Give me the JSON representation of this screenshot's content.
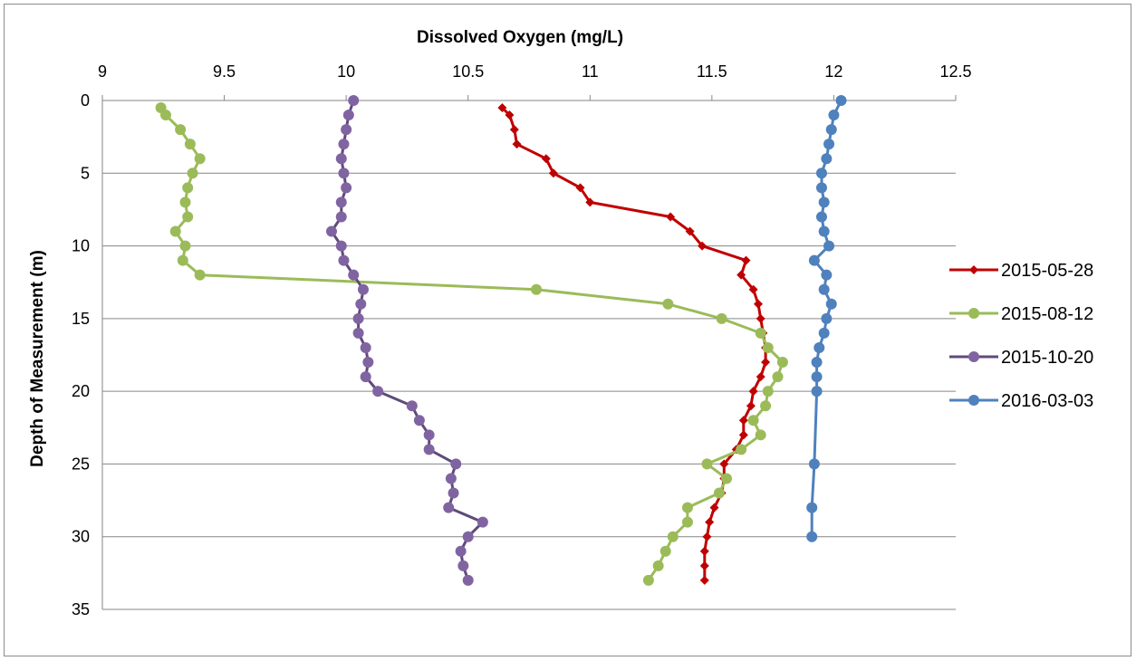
{
  "chart_data": {
    "type": "line",
    "xlabel": "Dissolved Oxygen (mg/L)",
    "ylabel": "Depth of Measurement (m)",
    "x_axis_position": "top",
    "y_axis_reversed": true,
    "xlim": [
      9,
      12.5
    ],
    "ylim": [
      0,
      35
    ],
    "xticks": [
      "9",
      "9.5",
      "10",
      "10.5",
      "11",
      "11.5",
      "12",
      "12.5"
    ],
    "yticks": [
      "0",
      "5",
      "10",
      "15",
      "20",
      "25",
      "30",
      "35"
    ],
    "grid": "horizontal",
    "legend_position": "right",
    "series": [
      {
        "name": "2015-05-28",
        "color": "#c00000",
        "marker": "diamond",
        "points": [
          [
            10.64,
            0.5
          ],
          [
            10.67,
            1
          ],
          [
            10.69,
            2
          ],
          [
            10.7,
            3
          ],
          [
            10.82,
            4
          ],
          [
            10.85,
            5
          ],
          [
            10.96,
            6
          ],
          [
            11,
            7
          ],
          [
            11.33,
            8
          ],
          [
            11.41,
            9
          ],
          [
            11.46,
            10
          ],
          [
            11.64,
            11
          ],
          [
            11.62,
            12
          ],
          [
            11.67,
            13
          ],
          [
            11.69,
            14
          ],
          [
            11.7,
            15
          ],
          [
            11.71,
            16
          ],
          [
            11.72,
            17
          ],
          [
            11.72,
            18
          ],
          [
            11.7,
            19
          ],
          [
            11.67,
            20
          ],
          [
            11.66,
            21
          ],
          [
            11.63,
            22
          ],
          [
            11.63,
            23
          ],
          [
            11.6,
            24
          ],
          [
            11.55,
            25
          ],
          [
            11.55,
            26
          ],
          [
            11.54,
            27
          ],
          [
            11.51,
            28
          ],
          [
            11.49,
            29
          ],
          [
            11.48,
            30
          ],
          [
            11.47,
            31
          ],
          [
            11.47,
            32
          ],
          [
            11.47,
            33
          ]
        ]
      },
      {
        "name": "2015-08-12",
        "color": "#9bbb59",
        "marker": "circle",
        "points": [
          [
            9.24,
            0.5
          ],
          [
            9.26,
            1
          ],
          [
            9.32,
            2
          ],
          [
            9.36,
            3
          ],
          [
            9.4,
            4
          ],
          [
            9.37,
            5
          ],
          [
            9.35,
            6
          ],
          [
            9.34,
            7
          ],
          [
            9.35,
            8
          ],
          [
            9.3,
            9
          ],
          [
            9.34,
            10
          ],
          [
            9.33,
            11
          ],
          [
            9.4,
            12
          ],
          [
            10.78,
            13
          ],
          [
            11.32,
            14
          ],
          [
            11.54,
            15
          ],
          [
            11.7,
            16
          ],
          [
            11.73,
            17
          ],
          [
            11.79,
            18
          ],
          [
            11.77,
            19
          ],
          [
            11.73,
            20
          ],
          [
            11.72,
            21
          ],
          [
            11.67,
            22
          ],
          [
            11.7,
            23
          ],
          [
            11.62,
            24
          ],
          [
            11.48,
            25
          ],
          [
            11.56,
            26
          ],
          [
            11.53,
            27
          ],
          [
            11.4,
            28
          ],
          [
            11.4,
            29
          ],
          [
            11.34,
            30
          ],
          [
            11.31,
            31
          ],
          [
            11.28,
            32
          ],
          [
            11.24,
            33
          ]
        ]
      },
      {
        "name": "2015-10-20",
        "color": "#604a7b",
        "marker_color": "#8064a2",
        "marker": "circle",
        "points": [
          [
            10.03,
            0
          ],
          [
            10.01,
            1
          ],
          [
            10,
            2
          ],
          [
            9.99,
            3
          ],
          [
            9.98,
            4
          ],
          [
            9.99,
            5
          ],
          [
            10,
            6
          ],
          [
            9.98,
            7
          ],
          [
            9.98,
            8
          ],
          [
            9.94,
            9
          ],
          [
            9.98,
            10
          ],
          [
            9.99,
            11
          ],
          [
            10.03,
            12
          ],
          [
            10.07,
            13
          ],
          [
            10.06,
            14
          ],
          [
            10.05,
            15
          ],
          [
            10.05,
            16
          ],
          [
            10.08,
            17
          ],
          [
            10.09,
            18
          ],
          [
            10.08,
            19
          ],
          [
            10.13,
            20
          ],
          [
            10.27,
            21
          ],
          [
            10.3,
            22
          ],
          [
            10.34,
            23
          ],
          [
            10.34,
            24
          ],
          [
            10.45,
            25
          ],
          [
            10.43,
            26
          ],
          [
            10.44,
            27
          ],
          [
            10.42,
            28
          ],
          [
            10.56,
            29
          ],
          [
            10.5,
            30
          ],
          [
            10.47,
            31
          ],
          [
            10.48,
            32
          ],
          [
            10.5,
            33
          ]
        ]
      },
      {
        "name": "2016-03-03",
        "color": "#4f81bd",
        "marker": "circle",
        "points": [
          [
            12.03,
            0
          ],
          [
            12,
            1
          ],
          [
            11.99,
            2
          ],
          [
            11.98,
            3
          ],
          [
            11.97,
            4
          ],
          [
            11.95,
            5
          ],
          [
            11.95,
            6
          ],
          [
            11.96,
            7
          ],
          [
            11.95,
            8
          ],
          [
            11.96,
            9
          ],
          [
            11.98,
            10
          ],
          [
            11.92,
            11
          ],
          [
            11.97,
            12
          ],
          [
            11.96,
            13
          ],
          [
            11.99,
            14
          ],
          [
            11.97,
            15
          ],
          [
            11.96,
            16
          ],
          [
            11.94,
            17
          ],
          [
            11.93,
            18
          ],
          [
            11.93,
            19
          ],
          [
            11.93,
            20
          ],
          [
            11.92,
            25
          ],
          [
            11.91,
            28
          ],
          [
            11.91,
            30
          ]
        ]
      }
    ]
  }
}
